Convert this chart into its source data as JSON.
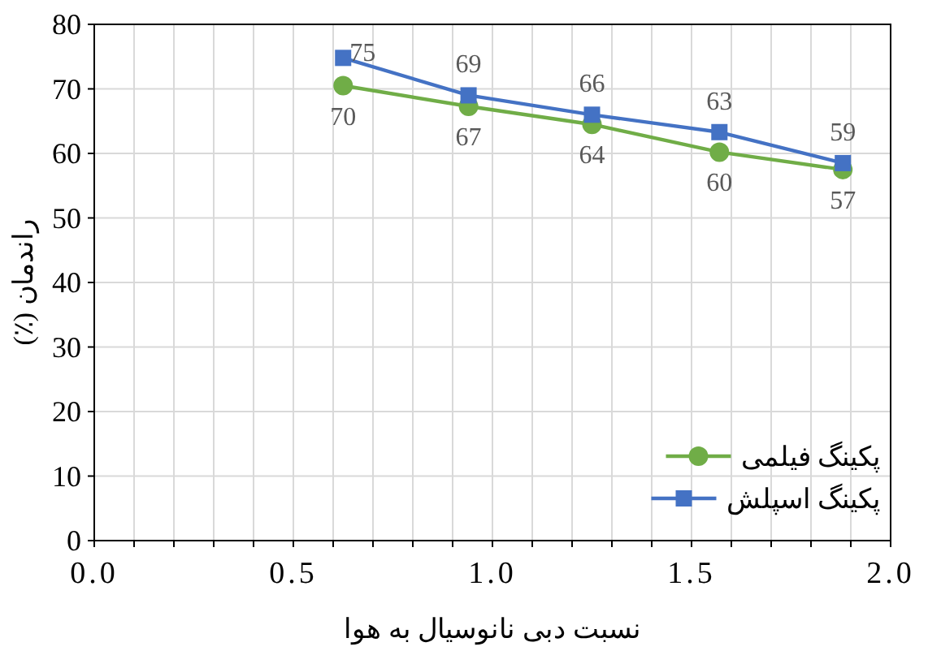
{
  "chart_data": {
    "type": "line",
    "xlabel": "نسبت دبی نانوسیال به هوا",
    "ylabel": "راندمان (٪)",
    "xlim": [
      0,
      2
    ],
    "ylim": [
      0,
      80
    ],
    "xticks": [
      {
        "value": 0,
        "label": "0.0"
      },
      {
        "value": 0.1,
        "label": null
      },
      {
        "value": 0.2,
        "label": null
      },
      {
        "value": 0.3,
        "label": null
      },
      {
        "value": 0.4,
        "label": null
      },
      {
        "value": 0.5,
        "label": "0.5"
      },
      {
        "value": 0.6,
        "label": null
      },
      {
        "value": 0.7,
        "label": null
      },
      {
        "value": 0.8,
        "label": null
      },
      {
        "value": 0.9,
        "label": null
      },
      {
        "value": 1,
        "label": "1.0"
      },
      {
        "value": 1.1,
        "label": null
      },
      {
        "value": 1.2,
        "label": null
      },
      {
        "value": 1.3,
        "label": null
      },
      {
        "value": 1.4,
        "label": null
      },
      {
        "value": 1.5,
        "label": "1.5"
      },
      {
        "value": 1.6,
        "label": null
      },
      {
        "value": 1.7,
        "label": null
      },
      {
        "value": 1.8,
        "label": null
      },
      {
        "value": 1.9,
        "label": null
      },
      {
        "value": 2,
        "label": "2.0"
      }
    ],
    "yticks": [
      0,
      10,
      20,
      30,
      40,
      50,
      60,
      70,
      80
    ],
    "grid": true,
    "legend": "bottom right",
    "x": [
      0.625,
      0.94,
      1.25,
      1.57,
      1.88
    ],
    "series": [
      {
        "name": "پکینگ فیلمی",
        "color": "#70ad47",
        "marker": "circle",
        "values": [
          70.5,
          67.3,
          64.5,
          60.2,
          57.5
        ],
        "value_labels": [
          "70",
          "67",
          "64",
          "60",
          "57"
        ]
      },
      {
        "name": "پکینگ اسپلش",
        "color": "#4472c4",
        "marker": "square",
        "values": [
          74.8,
          69,
          66,
          63.3,
          58.5
        ],
        "value_labels": [
          "75",
          "69",
          "66",
          "63",
          "59"
        ]
      }
    ]
  }
}
